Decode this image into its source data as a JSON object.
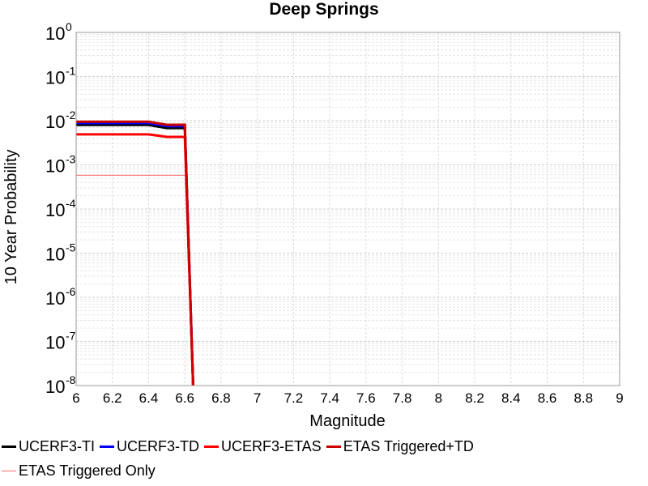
{
  "chart_data": {
    "type": "line",
    "title": "Deep Springs",
    "xlabel": "Magnitude",
    "ylabel": "10 Year Probability",
    "xlim": [
      6,
      9
    ],
    "ylim": [
      1e-08,
      1
    ],
    "y_scale": "log",
    "grid": true,
    "legend_position": "bottom",
    "x_ticks": [
      "6",
      "6.2",
      "6.4",
      "6.6",
      "6.8",
      "7",
      "7.2",
      "7.4",
      "7.6",
      "7.8",
      "8",
      "8.2",
      "8.4",
      "8.6",
      "8.8",
      "9"
    ],
    "y_ticks": [
      {
        "base": "10",
        "exp": "0"
      },
      {
        "base": "10",
        "exp": "-1"
      },
      {
        "base": "10",
        "exp": "-2"
      },
      {
        "base": "10",
        "exp": "-3"
      },
      {
        "base": "10",
        "exp": "-4"
      },
      {
        "base": "10",
        "exp": "-5"
      },
      {
        "base": "10",
        "exp": "-6"
      },
      {
        "base": "10",
        "exp": "-7"
      },
      {
        "base": "10",
        "exp": "-8"
      }
    ],
    "series": [
      {
        "name": "UCERF3-TI",
        "color": "#000000",
        "width": 3,
        "x": [
          6.0,
          6.4,
          6.5,
          6.6,
          6.65
        ],
        "y": [
          0.008,
          0.008,
          0.0068,
          0.0068,
          1e-09
        ]
      },
      {
        "name": "UCERF3-TD",
        "color": "#0000ff",
        "width": 3,
        "x": [
          6.0,
          6.4,
          6.5,
          6.6,
          6.65
        ],
        "y": [
          0.0088,
          0.0088,
          0.0075,
          0.0075,
          1e-09
        ]
      },
      {
        "name": "UCERF3-ETAS",
        "color": "#ff0000",
        "width": 3,
        "x": [
          6.0,
          6.4,
          6.5,
          6.6,
          6.65
        ],
        "y": [
          0.0049,
          0.0049,
          0.0043,
          0.0043,
          1e-09
        ]
      },
      {
        "name": "ETAS Triggered+TD",
        "color": "#cc0000",
        "width": 3,
        "x": [
          6.0,
          6.4,
          6.5,
          6.6,
          6.65
        ],
        "y": [
          0.0095,
          0.0095,
          0.0081,
          0.0081,
          1e-09
        ]
      },
      {
        "name": "ETAS Triggered Only",
        "color": "#ff6666",
        "width": 1,
        "x": [
          6.0,
          6.6
        ],
        "y": [
          0.00058,
          0.00058
        ]
      }
    ]
  },
  "legend": {
    "rows": [
      [
        "UCERF3-TI",
        "UCERF3-TD",
        "UCERF3-ETAS",
        "ETAS Triggered+TD"
      ],
      [
        "ETAS Triggered Only"
      ]
    ]
  }
}
